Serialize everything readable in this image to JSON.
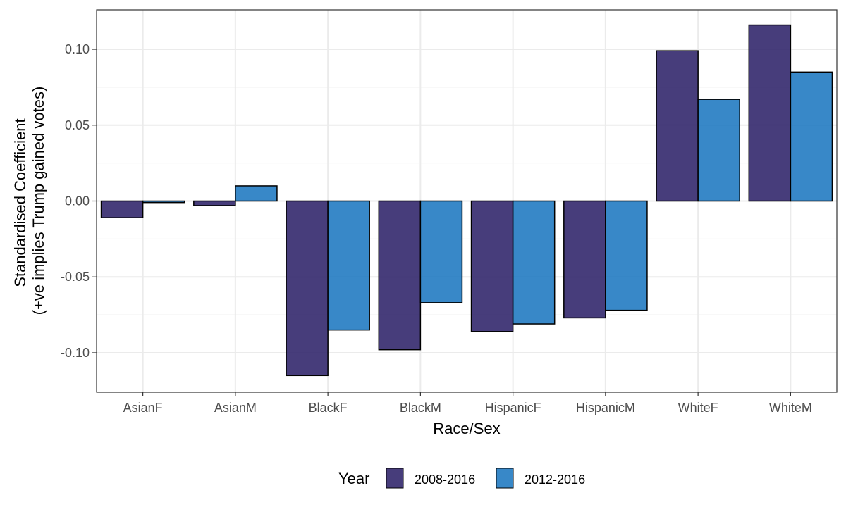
{
  "chart_data": {
    "type": "bar",
    "title": "",
    "xlabel": "Race/Sex",
    "ylabel_lines": [
      "Standardised Coefficient",
      "(+ve implies Trump gained votes)"
    ],
    "categories": [
      "AsianF",
      "AsianM",
      "BlackF",
      "BlackM",
      "HispanicF",
      "HispanicM",
      "WhiteF",
      "WhiteM"
    ],
    "series": [
      {
        "name": "2008-2016",
        "color": "#2d2269",
        "values": [
          -0.011,
          -0.003,
          -0.115,
          -0.098,
          -0.086,
          -0.077,
          0.099,
          0.116
        ]
      },
      {
        "name": "2012-2016",
        "color": "#1d78c0",
        "values": [
          -0.001,
          0.01,
          -0.085,
          -0.067,
          -0.081,
          -0.072,
          0.067,
          0.085
        ]
      }
    ],
    "ylim": [
      -0.126,
      0.126
    ],
    "yticks": [
      -0.1,
      -0.05,
      0.0,
      0.05,
      0.1
    ],
    "ytick_labels": [
      "-0.10",
      "-0.05",
      "0.00",
      "0.05",
      "0.10"
    ],
    "grid": true,
    "legend": {
      "title": "Year",
      "position": "bottom"
    }
  }
}
